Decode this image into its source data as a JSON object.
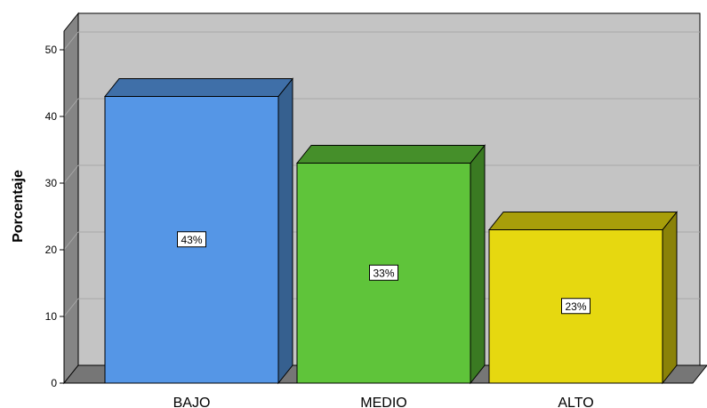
{
  "chart_data": {
    "type": "bar",
    "categories": [
      "BAJO",
      "MEDIO",
      "ALTO"
    ],
    "values": [
      43,
      33,
      23
    ],
    "data_labels": [
      "43%",
      "33%",
      "23%"
    ],
    "ylabel": "Porcentaje",
    "xlabel": "",
    "ylim": [
      0,
      50
    ],
    "yticks": [
      0,
      10,
      20,
      30,
      40,
      50
    ],
    "grid": true,
    "three_d": true,
    "colors": {
      "front": [
        "#5596e6",
        "#5fc43a",
        "#e6d810"
      ],
      "side": [
        "#36608f",
        "#3a7a22",
        "#8a8208"
      ],
      "top": [
        "#3f6fa8",
        "#458f2a",
        "#a89e0a"
      ],
      "wall": "#c4c4c4",
      "wall_side": "#858585",
      "floor": "#767676"
    }
  }
}
